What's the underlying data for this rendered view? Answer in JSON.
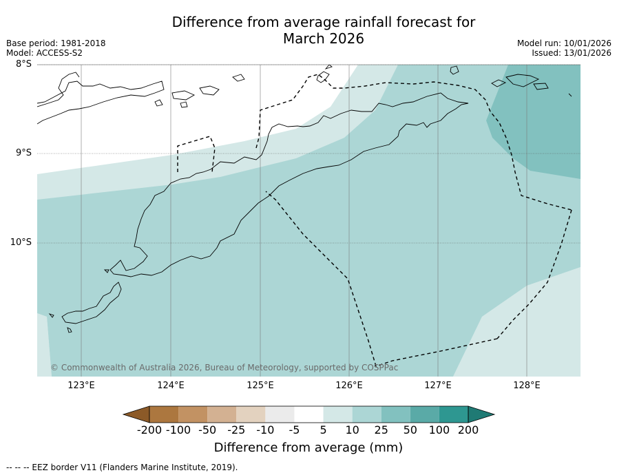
{
  "title": {
    "line1": "Difference from average rainfall forecast for",
    "line2": "March 2026"
  },
  "meta_left": {
    "base_period": "Base period: 1981-2018",
    "model": "Model: ACCESS-S2"
  },
  "meta_right": {
    "model_run": "Model run: 10/01/2026",
    "issued": "Issued: 13/01/2026"
  },
  "lat_labels": [
    "8°S",
    "9°S",
    "10°S"
  ],
  "lon_labels": [
    "123°E",
    "124°E",
    "125°E",
    "126°E",
    "127°E",
    "128°E"
  ],
  "credit": "© Commonwealth of Australia 2026, Bureau of Meteorology, supported by COSPPac",
  "colorbar": {
    "labels": [
      "-200",
      "-100",
      "-50",
      "-25",
      "-10",
      "-5",
      "5",
      "10",
      "25",
      "50",
      "100",
      "200"
    ],
    "colors": [
      "#8c5a28",
      "#ac773f",
      "#c29263",
      "#d3b192",
      "#e3d2bf",
      "#ebebeb",
      "#ffffff",
      "#d4e8e7",
      "#acd6d5",
      "#82c1bf",
      "#5aaaa7",
      "#2e9791",
      "#1f7a74"
    ],
    "title": "Difference from average (mm)"
  },
  "legend": {
    "eez": "-- -- -- EEZ border V11 (Flanders Marine Institute, 2019)."
  },
  "palette": {
    "c5_10": "#d4e8e7",
    "c10_25": "#acd6d5",
    "c25_50": "#82c1bf"
  }
}
